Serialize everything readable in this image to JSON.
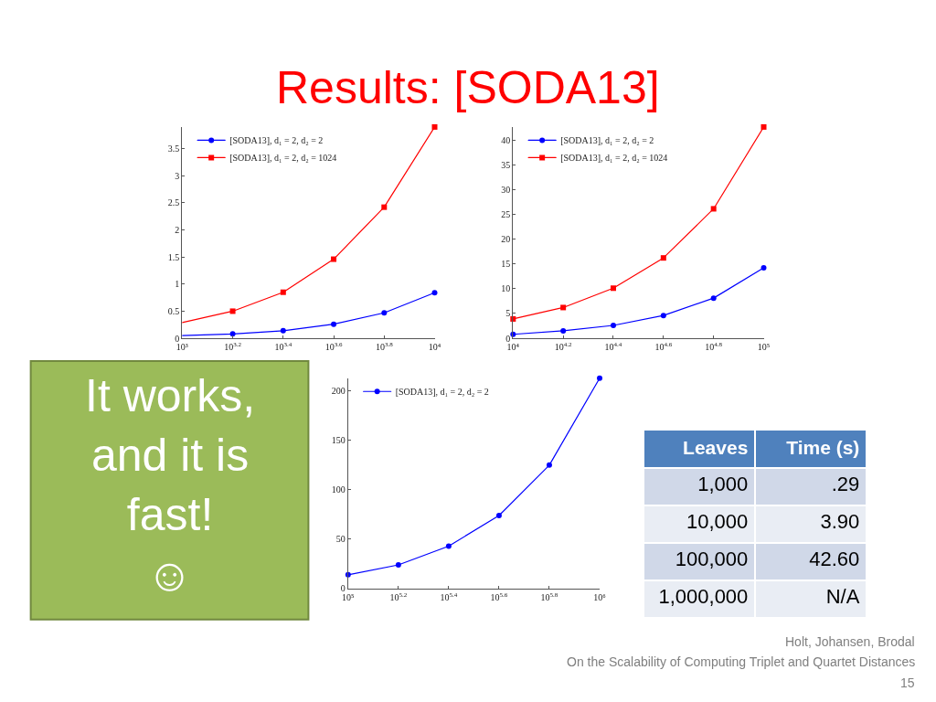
{
  "chart_data": [
    {
      "type": "other",
      "title": "Results: [SODA13]",
      "color": "#ff0000"
    },
    {
      "type": "line",
      "x": [
        1000,
        1585,
        2512,
        3981,
        6310,
        10000
      ],
      "series": [
        {
          "name": "[SODA13], d₁ = 2, d₂ = 2",
          "color": "#0000ff",
          "marker": "circle",
          "values": [
            0.05,
            0.08,
            0.14,
            0.26,
            0.47,
            0.84
          ]
        },
        {
          "name": "[SODA13], d₁ = 2, d₂ = 1024",
          "color": "#ff0000",
          "marker": "square",
          "values": [
            0.29,
            0.5,
            0.85,
            1.46,
            2.42,
            3.9
          ]
        }
      ],
      "log": "x",
      "xlim": [
        1000,
        10000
      ],
      "xticks": [
        {
          "value": 1000,
          "label": "10³"
        },
        {
          "value": 1585,
          "label": "10$^{3.2}$"
        },
        {
          "value": 2512,
          "label": "10$^{3.4}$"
        },
        {
          "value": 3981,
          "label": "10$^{3.6}$"
        },
        {
          "value": 6310,
          "label": "10$^{3.8}$"
        },
        {
          "value": 10000,
          "label": "10⁴"
        }
      ],
      "ylim": [
        0,
        3.9
      ],
      "yticks": [
        0,
        0.5,
        1,
        1.5,
        2,
        2.5,
        3,
        3.5
      ],
      "legend": "top left"
    },
    {
      "type": "line",
      "x": [
        10000,
        15849,
        25119,
        39811,
        63096,
        100000
      ],
      "series": [
        {
          "name": "[SODA13], d₁ = 2, d₂ = 2",
          "color": "#0000ff",
          "marker": "circle",
          "values": [
            0.8,
            1.5,
            2.6,
            4.6,
            8.1,
            14.2
          ]
        },
        {
          "name": "[SODA13], d₁ = 2, d₂ = 1024",
          "color": "#ff0000",
          "marker": "square",
          "values": [
            3.9,
            6.2,
            10.1,
            16.2,
            26.1,
            42.6
          ]
        }
      ],
      "log": "x",
      "xlim": [
        10000,
        100000
      ],
      "xticks": [
        {
          "value": 10000,
          "label": "10⁴"
        },
        {
          "value": 15849,
          "label": "10$^{4.2}$"
        },
        {
          "value": 25119,
          "label": "10$^{4.4}$"
        },
        {
          "value": 39811,
          "label": "10$^{4.6}$"
        },
        {
          "value": 63096,
          "label": "10$^{4.8}$"
        },
        {
          "value": 100000,
          "label": "10⁵"
        }
      ],
      "ylim": [
        0,
        42.6
      ],
      "yticks": [
        0,
        5,
        10,
        15,
        20,
        25,
        30,
        35,
        40
      ],
      "legend": "top left"
    },
    {
      "type": "other",
      "color": "#9bbb59",
      "annotations": [
        "It works, and it is fast!",
        "☺"
      ]
    },
    {
      "type": "line",
      "x": [
        100000,
        158489,
        251189,
        398107,
        630957,
        1000000
      ],
      "series": [
        {
          "name": "[SODA13], d₁ = 2, d₂ = 2",
          "color": "#0000ff",
          "marker": "circle",
          "values": [
            14,
            24,
            43,
            74,
            125,
            213
          ]
        }
      ],
      "log": "x",
      "xlim": [
        100000,
        1000000
      ],
      "xticks": [
        {
          "value": 100000,
          "label": "10⁵"
        },
        {
          "value": 158489,
          "label": "10$^{5.2}$"
        },
        {
          "value": 251189,
          "label": "10$^{5.4}$"
        },
        {
          "value": 398107,
          "label": "10$^{5.6}$"
        },
        {
          "value": 630957,
          "label": "10$^{5.8}$"
        },
        {
          "value": 1000000,
          "label": "10⁶"
        }
      ],
      "ylim": [
        0,
        213
      ],
      "yticks": [
        0,
        50,
        100,
        150,
        200
      ],
      "legend": "top left"
    },
    {
      "type": "other",
      "categories": [
        "Leaves",
        "Time (s)"
      ],
      "cell_labels": [
        [
          "1,000",
          ".29"
        ],
        [
          "10,000",
          "3.90"
        ],
        [
          "100,000",
          "42.60"
        ],
        [
          "1,000,000",
          "N/A"
        ]
      ]
    },
    {
      "type": "other",
      "annotations": [
        "Holt, Johansen, Brodal",
        "On the Scalability of Computing Triplet and Quartet Distances",
        "15"
      ]
    }
  ]
}
